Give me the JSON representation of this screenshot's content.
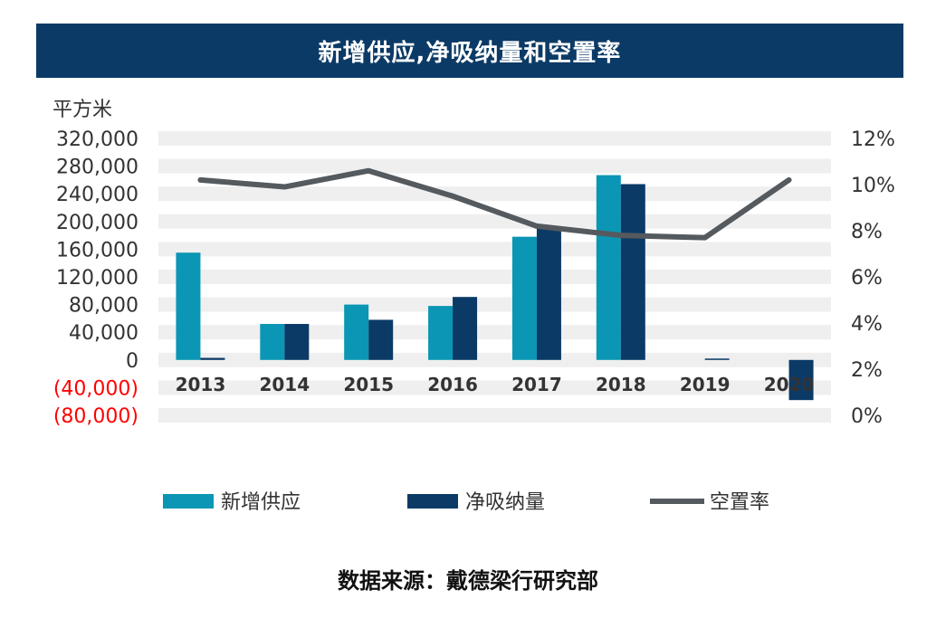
{
  "title": "新增供应,净吸纳量和空置率",
  "source": "数据来源：戴德梁行研究部",
  "colors": {
    "header_bg": "#0b3a66",
    "supply": "#0a96b4",
    "absorption": "#0b3a66",
    "vacancy": "#555a5f",
    "band": "#efefef",
    "negative_label": "#ff0000",
    "axis_text": "#333333"
  },
  "chart_data": {
    "type": "bar",
    "y_unit_label": "平方米",
    "categories": [
      "2013",
      "2014",
      "2015",
      "2016",
      "2017",
      "2018",
      "2019",
      "2020"
    ],
    "ylim": [
      -80000,
      320000
    ],
    "yticks": [
      320000,
      280000,
      240000,
      200000,
      160000,
      120000,
      80000,
      40000,
      0,
      -40000,
      -80000
    ],
    "ytick_labels": [
      "320,000",
      "280,000",
      "240,000",
      "200,000",
      "160,000",
      "120,000",
      "80,000",
      "40,000",
      "0",
      "(40,000)",
      "(80,000)"
    ],
    "y2lim": [
      0,
      12
    ],
    "y2ticks": [
      12,
      10,
      8,
      6,
      4,
      2,
      0
    ],
    "y2tick_labels": [
      "12%",
      "10%",
      "8%",
      "6%",
      "4%",
      "2%",
      "0%"
    ],
    "series": [
      {
        "name": "新增供应",
        "kind": "bar",
        "axis": "left",
        "values": [
          155000,
          52000,
          80000,
          78000,
          178000,
          267000,
          0,
          0
        ]
      },
      {
        "name": "净吸纳量",
        "kind": "bar",
        "axis": "left",
        "values": [
          3000,
          52000,
          58000,
          91000,
          190000,
          254000,
          2000,
          -58000
        ]
      },
      {
        "name": "空置率",
        "kind": "line",
        "axis": "right",
        "values": [
          10.2,
          9.9,
          10.6,
          9.5,
          8.2,
          7.8,
          7.7,
          10.2
        ]
      }
    ],
    "legend": [
      "新增供应",
      "净吸纳量",
      "空置率"
    ],
    "legend_position": "bottom",
    "grid": true
  }
}
